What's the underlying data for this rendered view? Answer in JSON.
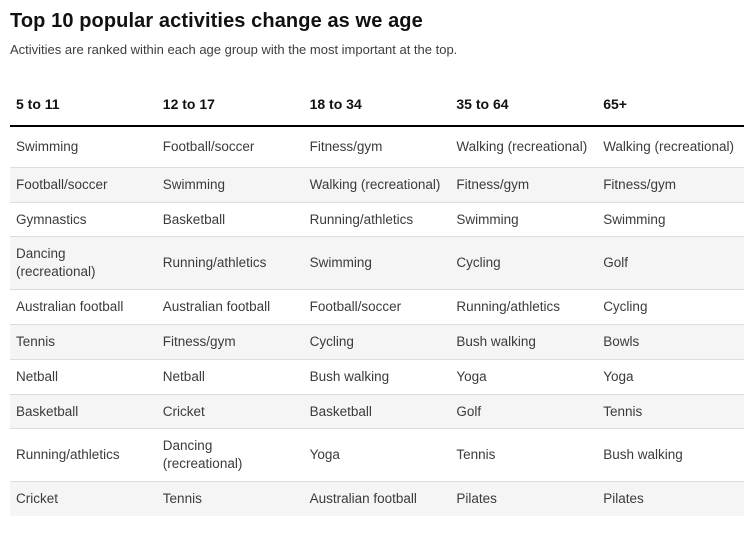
{
  "header": {
    "title": "Top 10 popular activities change as we age",
    "subtitle": "Activities are ranked within each age group with the most important at the top."
  },
  "colors": {
    "title": "#111111",
    "subtitle": "#3d3d3d",
    "body_text": "#3b3b3b",
    "stripe": "#f5f5f5",
    "row_border": "#dddddd",
    "header_rule": "#000000"
  },
  "chart_data": {
    "type": "table",
    "title": "Top 10 popular activities change as we age",
    "subtitle": "Activities are ranked within each age group with the most important at the top.",
    "columns": [
      "5 to 11",
      "12 to 17",
      "18 to 34",
      "35 to 64",
      "65+"
    ],
    "rows": [
      [
        "Swimming",
        "Football/soccer",
        "Fitness/gym",
        "Walking (recreational)",
        "Walking (recreational)"
      ],
      [
        "Football/soccer",
        "Swimming",
        "Walking (recreational)",
        "Fitness/gym",
        "Fitness/gym"
      ],
      [
        "Gymnastics",
        "Basketball",
        "Running/athletics",
        "Swimming",
        "Swimming"
      ],
      [
        "Dancing (recreational)",
        "Running/athletics",
        "Swimming",
        "Cycling",
        "Golf"
      ],
      [
        "Australian football",
        "Australian football",
        "Football/soccer",
        "Running/athletics",
        "Cycling"
      ],
      [
        "Tennis",
        "Fitness/gym",
        "Cycling",
        "Bush walking",
        "Bowls"
      ],
      [
        "Netball",
        "Netball",
        "Bush walking",
        "Yoga",
        "Yoga"
      ],
      [
        "Basketball",
        "Cricket",
        "Basketball",
        "Golf",
        "Tennis"
      ],
      [
        "Running/athletics",
        "Dancing (recreational)",
        "Yoga",
        "Tennis",
        "Bush walking"
      ],
      [
        "Cricket",
        "Tennis",
        "Australian football",
        "Pilates",
        "Pilates"
      ]
    ],
    "layout": {
      "ranking_order": "most important at top",
      "row_striping": "even rows shaded",
      "grid": "horizontal row dividers only",
      "header_rule": "2px solid black under column headers"
    }
  }
}
